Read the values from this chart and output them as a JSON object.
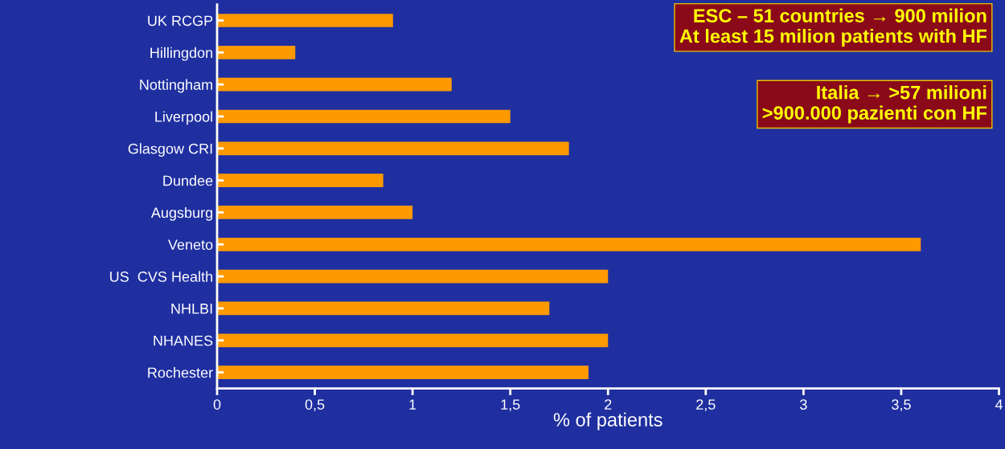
{
  "chart_data": {
    "type": "bar",
    "orientation": "horizontal",
    "xlabel": "% of patients",
    "categories": [
      "UK RCGP",
      "Hillingdon",
      "Nottingham",
      "Liverpool",
      "Glasgow CRI",
      "Dundee",
      "Augsburg",
      "Veneto",
      "US  CVS Health",
      "NHLBI",
      "NHANES",
      "Rochester"
    ],
    "values": [
      0.9,
      0.4,
      1.2,
      1.5,
      1.8,
      0.85,
      1.0,
      3.6,
      2.0,
      1.7,
      2.0,
      1.9
    ],
    "color": "#ff9900",
    "xlim": [
      0,
      4
    ],
    "xticks": [
      0,
      {
        "value": 0.5,
        "label": "0,5"
      },
      1,
      {
        "value": 1.5,
        "label": "1,5"
      },
      2,
      {
        "value": 2.5,
        "label": "2,5"
      },
      3,
      {
        "value": 3.5,
        "label": "3,5"
      },
      4
    ],
    "grid": false,
    "annotations": [
      "ESC – 51 countries → 900 milion\nAt least 15 milion patients with HF",
      "Italia → >57 milioni\n>900.000 pazienti con HF"
    ]
  }
}
